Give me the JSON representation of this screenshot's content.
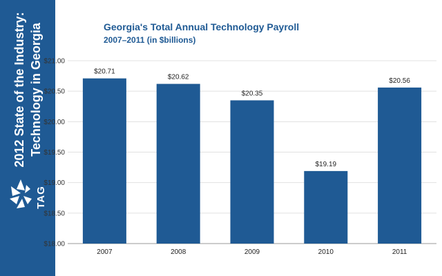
{
  "sidebar": {
    "title_line1": "2012 State of the Industry:",
    "title_line2": "Technology in Georgia",
    "logo_text": "TAG",
    "logo_icon": "star-burst-icon",
    "color": "#1f5a94"
  },
  "chart_data": {
    "type": "bar",
    "title": "Georgia's Total Annual Technology Payroll",
    "subtitle": "2007–2011 (in $billions)",
    "xlabel": "",
    "ylabel": "",
    "categories": [
      "2007",
      "2008",
      "2009",
      "2010",
      "2011"
    ],
    "values": [
      20.71,
      20.62,
      20.35,
      19.19,
      20.56
    ],
    "value_labels": [
      "$20.71",
      "$20.62",
      "$20.35",
      "$19.19",
      "$20.56"
    ],
    "ylim": [
      18.0,
      21.0
    ],
    "yticks": [
      18.0,
      18.5,
      19.0,
      19.5,
      20.0,
      20.5,
      21.0
    ],
    "ytick_labels": [
      "$18.00",
      "$18.50",
      "$19.00",
      "$19.50",
      "$20.00",
      "$20.50",
      "$21.00"
    ],
    "grid": true,
    "legend": "none",
    "bar_color": "#1f5a94"
  }
}
